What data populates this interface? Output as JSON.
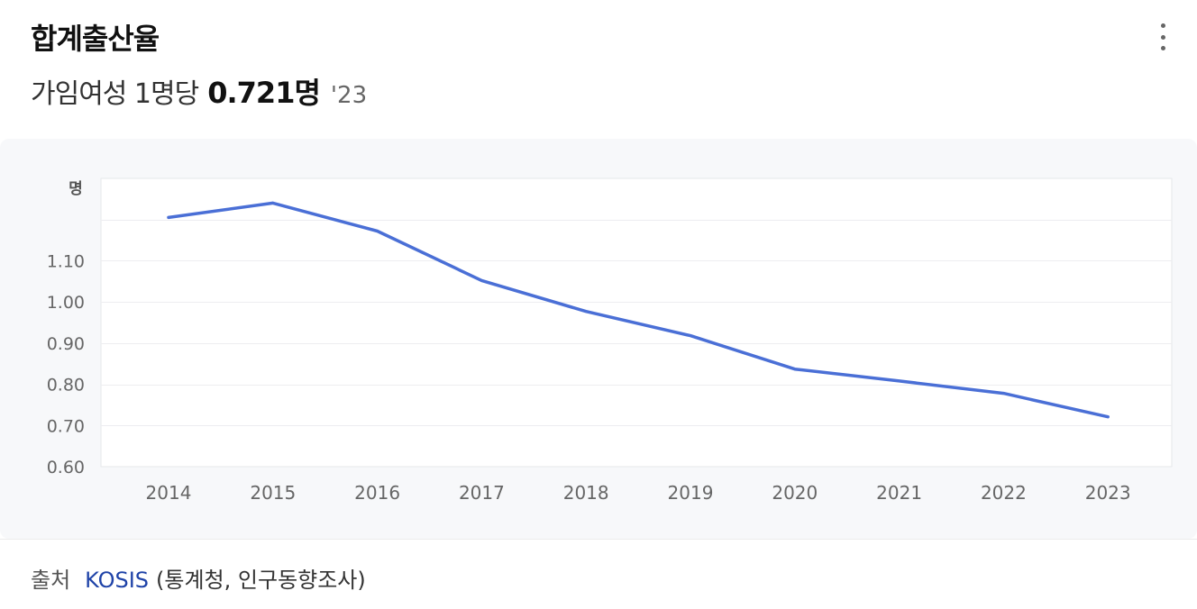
{
  "header": {
    "title": "합계출산율",
    "subtitle_label": "가임여성 1명당",
    "subtitle_value": "0.721명",
    "subtitle_year": "'23"
  },
  "source": {
    "label": "출처",
    "link": "KOSIS",
    "detail": "(통계청, 인구동향조사)"
  },
  "colors": {
    "line": "#4a6fd6"
  },
  "chart_data": {
    "type": "line",
    "ylabel": "명",
    "x": [
      "2014",
      "2015",
      "2016",
      "2017",
      "2018",
      "2019",
      "2020",
      "2021",
      "2022",
      "2023"
    ],
    "series": [
      {
        "values": [
          1.205,
          1.24,
          1.172,
          1.052,
          0.977,
          0.918,
          0.837,
          0.808,
          0.778,
          0.721
        ]
      }
    ],
    "ylim": [
      0.6,
      1.3
    ],
    "yticks": [
      0.6,
      0.7,
      0.8,
      0.9,
      1.0,
      1.1
    ],
    "ytick_labels": [
      "0.60",
      "0.70",
      "0.80",
      "0.90",
      "1.00",
      "1.10"
    ],
    "grid": true
  }
}
